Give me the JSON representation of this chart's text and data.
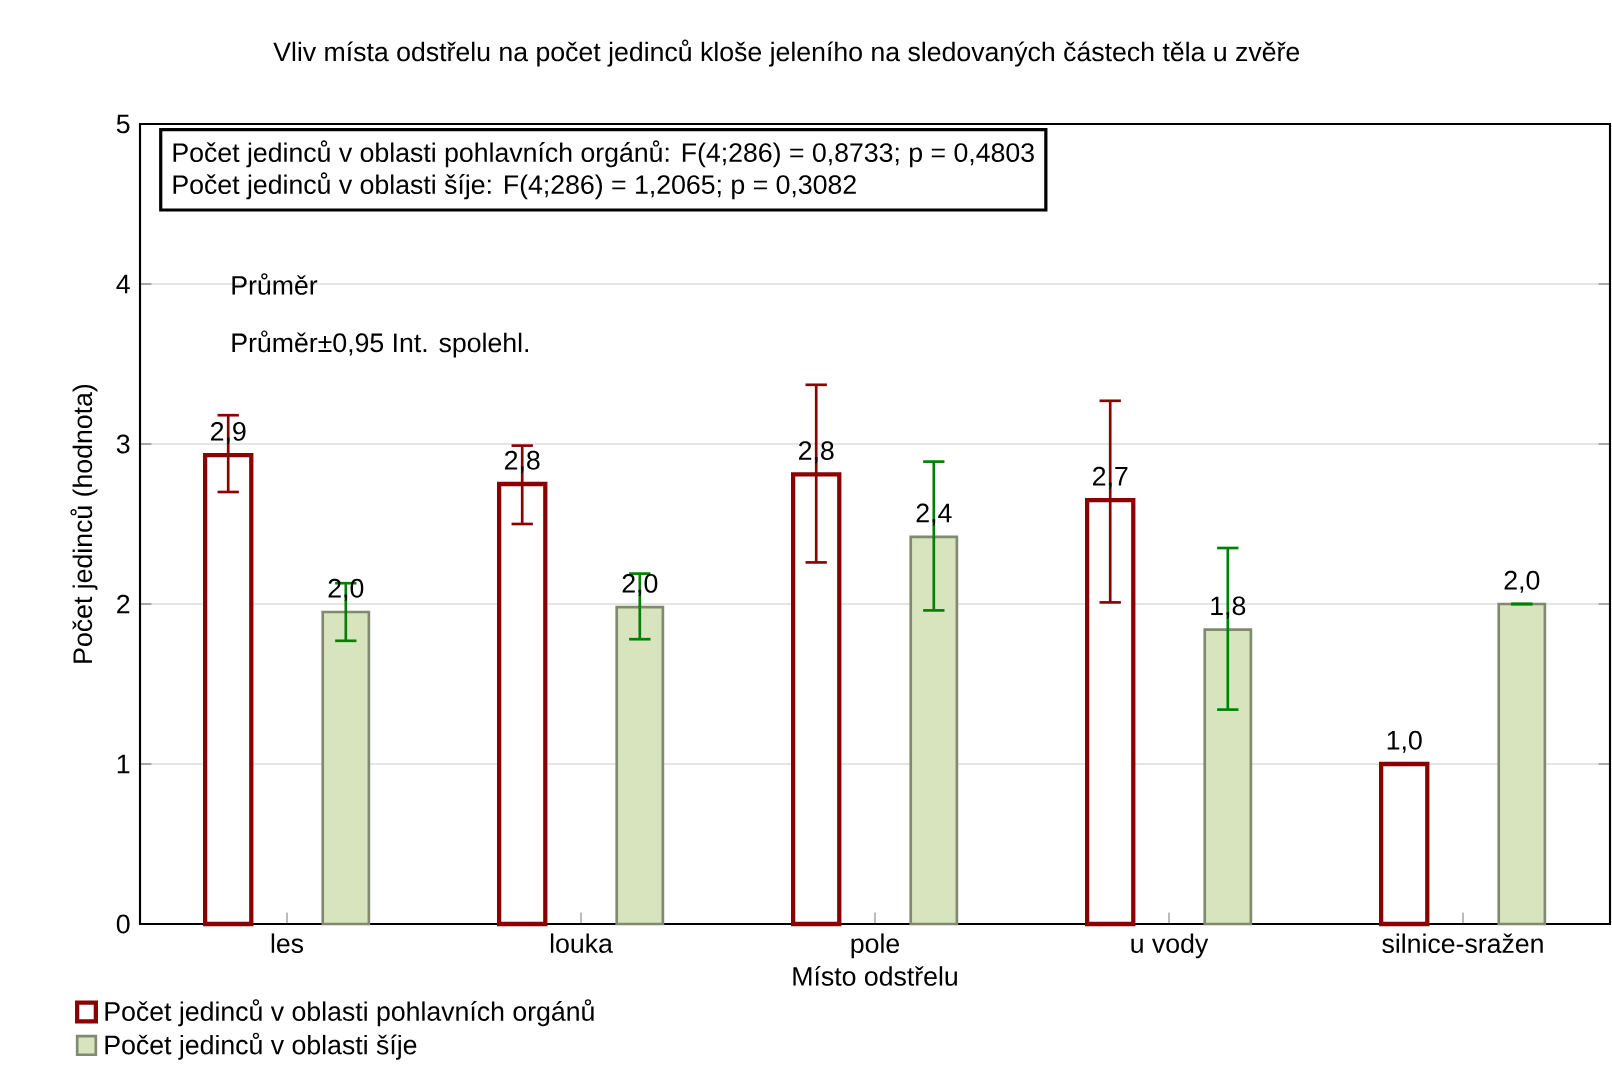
{
  "chart_data": {
    "type": "bar",
    "title": "Vliv místa odstřelu na počet jedinců kloše jeleního na sledovaných částech těla u zvěře",
    "xlabel": "Místo odstřelu",
    "ylabel": "Počet jedinců (hodnota)",
    "categories": [
      "les",
      "louka",
      "pole",
      "u vody",
      "silnice-sražen"
    ],
    "series": [
      {
        "name": "Počet jedinců v oblasti pohlavních orgánů",
        "color": "#8b0000",
        "values": [
          2.93,
          2.75,
          2.81,
          2.65,
          1.0
        ],
        "errors": [
          [
            2.7,
            3.18
          ],
          [
            2.5,
            2.99
          ],
          [
            2.26,
            3.37
          ],
          [
            2.01,
            3.27
          ],
          null
        ],
        "value_labels": [
          "2,9",
          "2,8",
          "2,8",
          "2,7",
          "1,0"
        ]
      },
      {
        "name": "Počet jedinců v oblasti šíje",
        "color": "#d7e4bd",
        "values": [
          1.95,
          1.98,
          2.42,
          1.84,
          2.0
        ],
        "errors": [
          [
            1.77,
            2.13
          ],
          [
            1.78,
            2.19
          ],
          [
            1.96,
            2.89
          ],
          [
            1.34,
            2.35
          ],
          null
        ],
        "value_labels": [
          "2,0",
          "2,0",
          "2,4",
          "1,8",
          "2,0"
        ]
      }
    ],
    "ylim": [
      0,
      5
    ],
    "yticks": [
      0,
      1,
      2,
      3,
      4,
      5
    ],
    "grid": "y",
    "legend": "bottom left",
    "annotations": [
      "Počet jedinců v oblasti pohlavních orgánů:   F(4;286) = 0,8733; p = 0,4803",
      "Počet jedinců v oblasti šíje:   F(4;286) = 1,2065; p = 0,3082",
      "Průměr",
      "Průměr±0,95 Int. spolehl."
    ]
  }
}
